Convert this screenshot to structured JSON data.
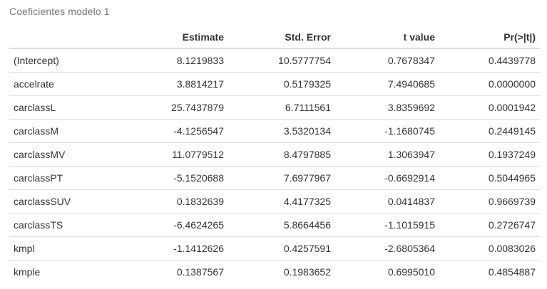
{
  "caption": "Coeficientes modelo 1",
  "table": {
    "headers": [
      "",
      "Estimate",
      "Std. Error",
      "t value",
      "Pr(>|t|)"
    ],
    "rows": [
      [
        "(Intercept)",
        "8.1219833",
        "10.5777754",
        "0.7678347",
        "0.4439778"
      ],
      [
        "accelrate",
        "3.8814217",
        "0.5179325",
        "7.4940685",
        "0.0000000"
      ],
      [
        "carclassL",
        "25.7437879",
        "6.7111561",
        "3.8359692",
        "0.0001942"
      ],
      [
        "carclassM",
        "-4.1256547",
        "3.5320134",
        "-1.1680745",
        "0.2449145"
      ],
      [
        "carclassMV",
        "11.0779512",
        "8.4797885",
        "1.3063947",
        "0.1937249"
      ],
      [
        "carclassPT",
        "-5.1520688",
        "7.6977967",
        "-0.6692914",
        "0.5044965"
      ],
      [
        "carclassSUV",
        "0.1832639",
        "4.4177325",
        "0.0414837",
        "0.9669739"
      ],
      [
        "carclassTS",
        "-6.4624265",
        "5.8664456",
        "-1.1015915",
        "0.2726747"
      ],
      [
        "kmpl",
        "-1.1412626",
        "0.4257591",
        "-2.6805364",
        "0.0083026"
      ],
      [
        "kmple",
        "0.1387567",
        "0.1983652",
        "0.6995010",
        "0.4854887"
      ]
    ]
  }
}
